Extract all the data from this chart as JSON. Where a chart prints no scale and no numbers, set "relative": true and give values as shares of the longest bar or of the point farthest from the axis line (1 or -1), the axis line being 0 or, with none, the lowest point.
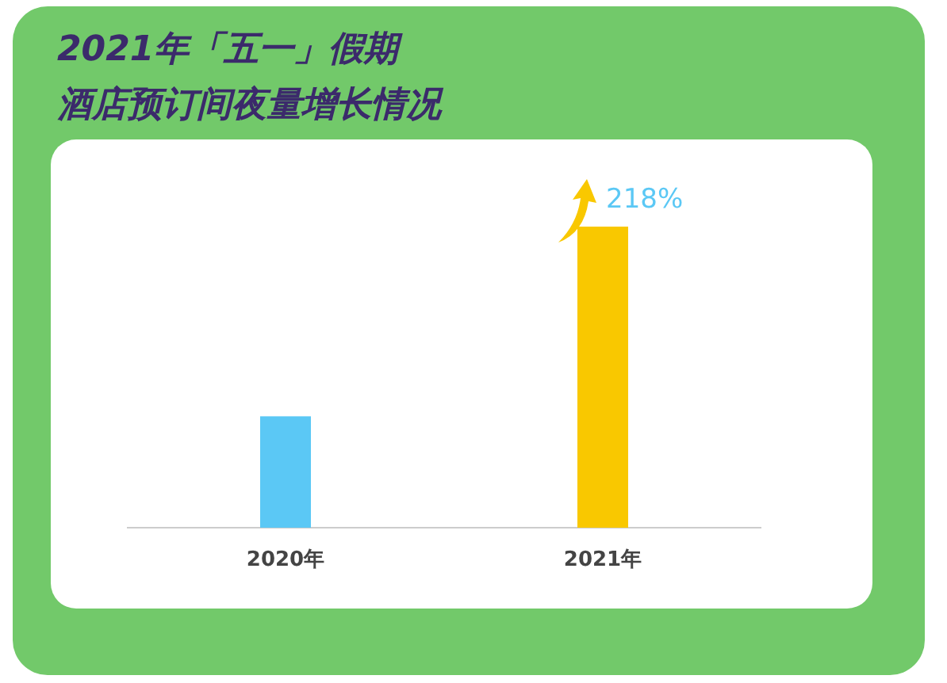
{
  "chart_data": {
    "type": "bar",
    "title": "2021年「五一」假期",
    "subtitle": "酒店预订间夜量增长情况",
    "categories": [
      "2020年",
      "2021年"
    ],
    "values": [
      0.37,
      1
    ],
    "colors": [
      "#5bc8f5",
      "#f9c800"
    ],
    "annotations": [
      {
        "text": "218%",
        "x": "2021年",
        "y": 1
      }
    ],
    "relative": true
  }
}
